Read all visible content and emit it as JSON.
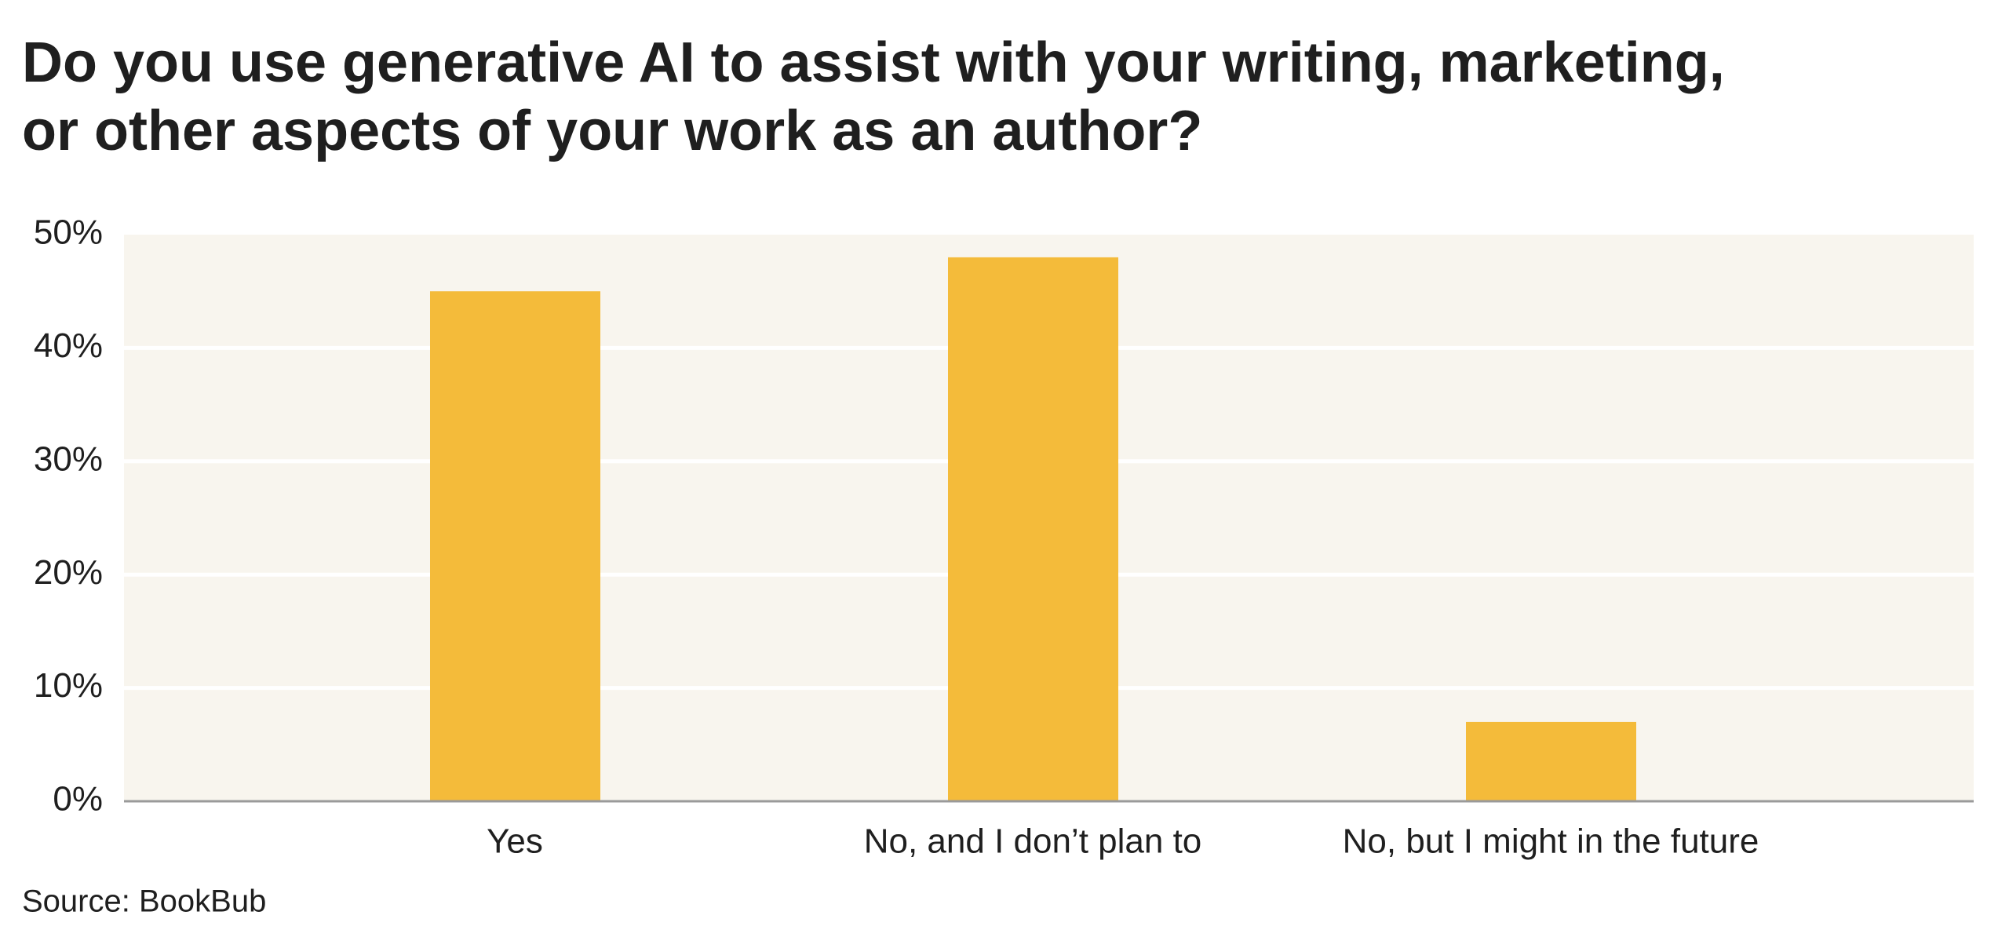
{
  "chart_data": {
    "type": "bar",
    "title": [
      "Do you use generative AI to assist with your writing, marketing,",
      "or other aspects of your work as an author?"
    ],
    "categories": [
      "Yes",
      "No, and I don’t plan to",
      "No, but I might in the future"
    ],
    "values": [
      45,
      48,
      7
    ],
    "color": "#f4bb3a",
    "ylim": [
      0,
      50
    ],
    "yticks": [
      {
        "value": 0,
        "label": "0%"
      },
      {
        "value": 10,
        "label": "10%"
      },
      {
        "value": 20,
        "label": "20%"
      },
      {
        "value": 30,
        "label": "30%"
      },
      {
        "value": 40,
        "label": "40%"
      },
      {
        "value": 50,
        "label": "50%"
      }
    ],
    "grid": true,
    "source": "Source: BookBub"
  }
}
